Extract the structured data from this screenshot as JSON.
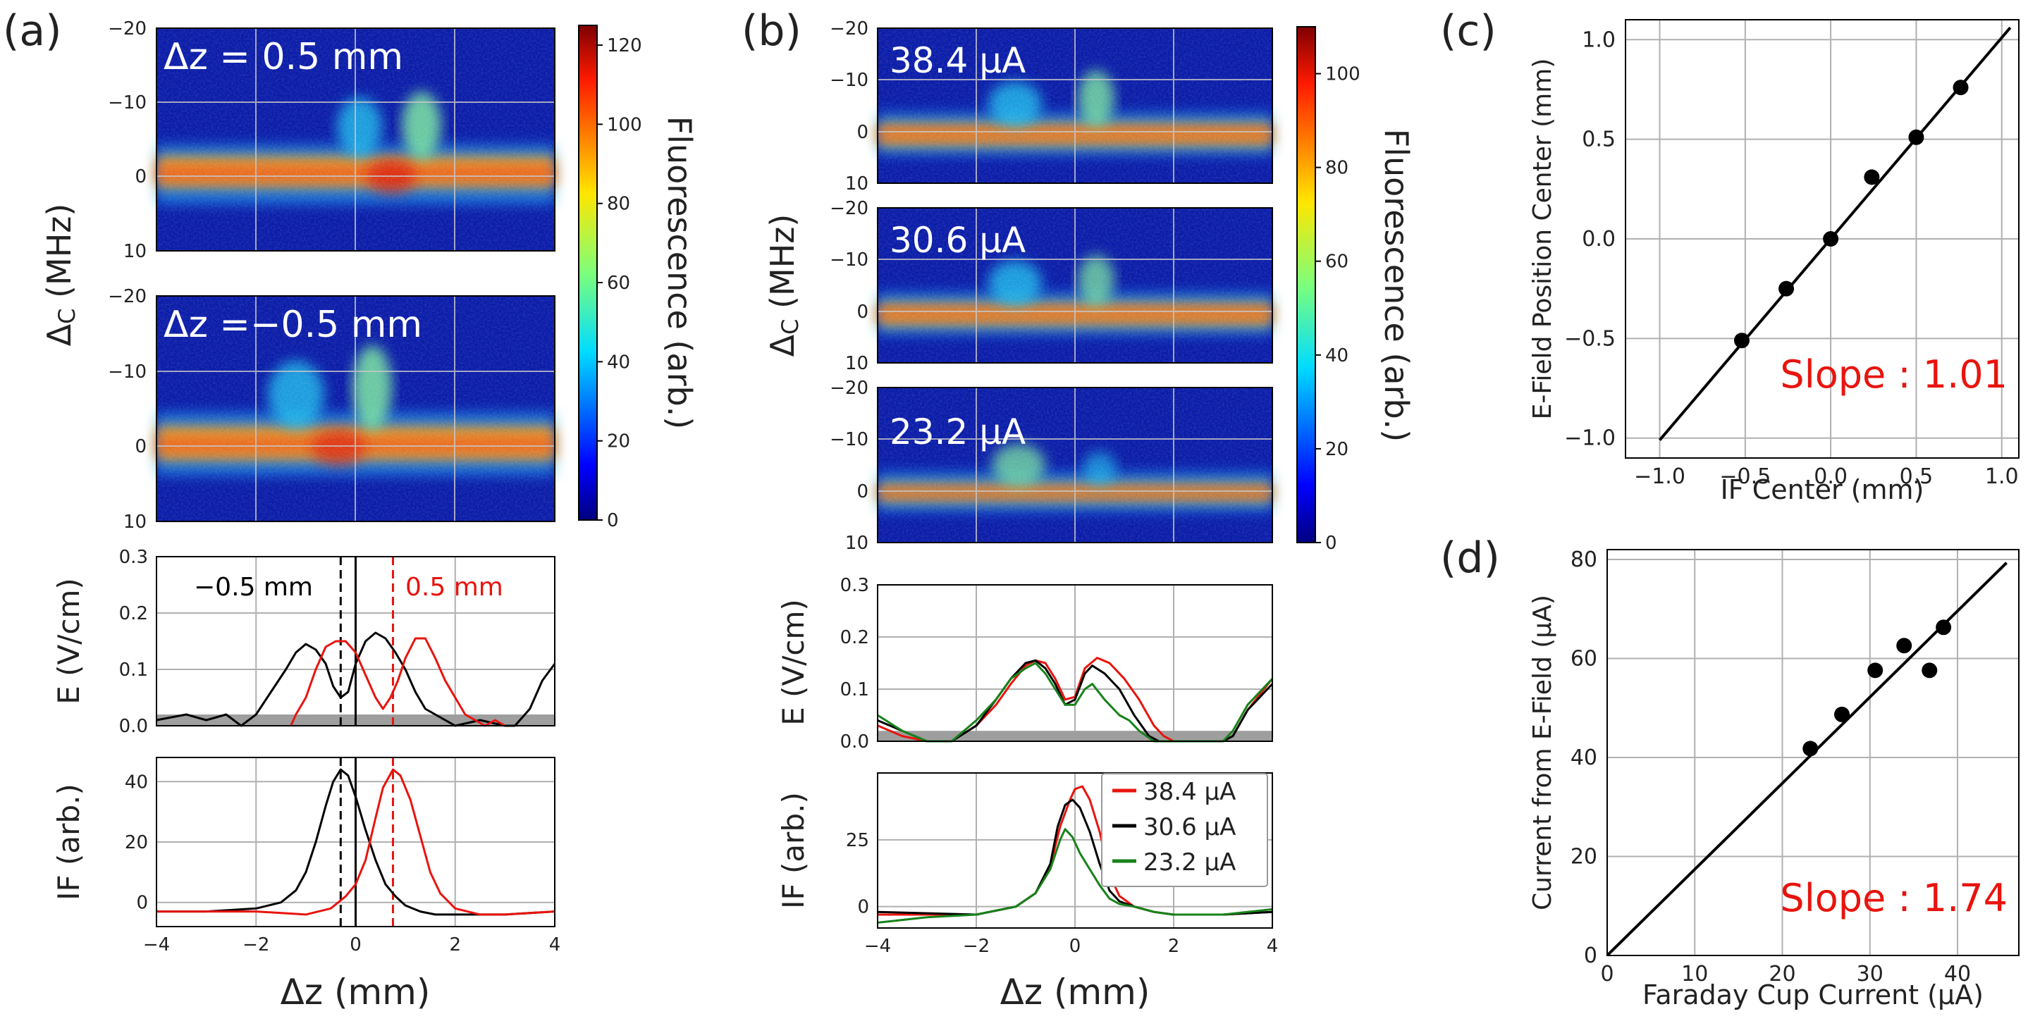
{
  "colors": {
    "red": "#e8140e",
    "black": "#000000",
    "green": "#17821a",
    "grid": "#b0b0b0",
    "shade": "#9e9e9e"
  },
  "panel_labels": [
    "(a)",
    "(b)",
    "(c)",
    "(d)"
  ],
  "chart_data": [
    {
      "id": "a-heatmaps",
      "type": "heatmap",
      "xlabel": "Δz (mm)",
      "ylabel": "Δ_C (MHz)",
      "xlim": [
        -4,
        4
      ],
      "ylim": [
        -20,
        10
      ],
      "y_ticks": [
        "−20",
        "−10",
        "0",
        "10"
      ],
      "maps": [
        {
          "label": "Δz = 0.5 mm",
          "dip_center": 0.8,
          "bump_centers": [
            0.3,
            1.4
          ]
        },
        {
          "label": "Δz =−0.5 mm",
          "dip_center": -0.3,
          "bump_centers": [
            -0.9,
            0.3
          ]
        }
      ],
      "colorbar": {
        "label": "Fluorescence (arb.)",
        "ticks": [
          "0",
          "20",
          "40",
          "60",
          "80",
          "100",
          "120"
        ],
        "range": [
          0,
          125
        ]
      }
    },
    {
      "id": "a-efield",
      "type": "line",
      "ylabel": "E (V/cm)",
      "xlim": [
        -4,
        4
      ],
      "ylim": [
        0,
        0.3
      ],
      "y_ticks": [
        "0.0",
        "0.1",
        "0.2",
        "0.3"
      ],
      "shade_below": 0.02,
      "annotations": [
        {
          "text": "−0.5 mm",
          "color": "black"
        },
        {
          "text": "0.5 mm",
          "color": "red"
        }
      ],
      "vlines": [
        {
          "x": -0.3,
          "color": "black",
          "style": "dashed"
        },
        {
          "x": 0.75,
          "color": "red",
          "style": "dashed"
        },
        {
          "x": 0.0,
          "color": "black",
          "style": "solid"
        }
      ],
      "series": [
        {
          "name": "−0.5 mm",
          "color": "black",
          "x": [
            -4.0,
            -3.4,
            -3.0,
            -2.6,
            -2.3,
            -2.0,
            -1.7,
            -1.4,
            -1.2,
            -1.0,
            -0.8,
            -0.6,
            -0.45,
            -0.3,
            -0.15,
            0.0,
            0.2,
            0.4,
            0.6,
            0.8,
            1.0,
            1.2,
            1.4,
            1.6,
            1.8,
            2.0,
            2.5,
            3.0,
            3.2,
            3.5,
            3.75,
            4.0
          ],
          "values": [
            0.01,
            0.02,
            0.01,
            0.02,
            0.0,
            0.02,
            0.06,
            0.1,
            0.13,
            0.145,
            0.135,
            0.11,
            0.07,
            0.05,
            0.06,
            0.11,
            0.15,
            0.165,
            0.155,
            0.13,
            0.1,
            0.06,
            0.03,
            0.02,
            0.01,
            0.0,
            0.01,
            0.0,
            0.0,
            0.03,
            0.08,
            0.11
          ]
        },
        {
          "name": "0.5 mm",
          "color": "red",
          "x": [
            -1.3,
            -1.2,
            -1.0,
            -0.8,
            -0.6,
            -0.4,
            -0.2,
            0.0,
            0.2,
            0.4,
            0.55,
            0.7,
            0.85,
            1.0,
            1.2,
            1.4,
            1.6,
            1.8,
            2.0,
            2.2,
            2.4,
            2.6,
            2.8,
            3.0
          ],
          "values": [
            0.0,
            0.02,
            0.05,
            0.1,
            0.14,
            0.15,
            0.15,
            0.13,
            0.09,
            0.05,
            0.03,
            0.05,
            0.08,
            0.12,
            0.155,
            0.155,
            0.12,
            0.08,
            0.05,
            0.02,
            0.01,
            0.0,
            0.01,
            0.0
          ]
        }
      ]
    },
    {
      "id": "a-if",
      "type": "line",
      "ylabel": "IF (arb.)",
      "xlabel": "Δz (mm)",
      "xlim": [
        -4,
        4
      ],
      "ylim": [
        -8,
        48
      ],
      "y_ticks": [
        "0",
        "20",
        "40"
      ],
      "x_ticks": [
        "−4",
        "−2",
        "0",
        "2",
        "4"
      ],
      "vlines": [
        {
          "x": -0.3,
          "color": "black",
          "style": "dashed"
        },
        {
          "x": 0.75,
          "color": "red",
          "style": "dashed"
        },
        {
          "x": 0.0,
          "color": "black",
          "style": "solid"
        }
      ],
      "series": [
        {
          "name": "−0.5 mm",
          "color": "black",
          "x": [
            -4.0,
            -3.0,
            -2.0,
            -1.5,
            -1.2,
            -1.0,
            -0.8,
            -0.6,
            -0.45,
            -0.3,
            -0.15,
            0.0,
            0.2,
            0.4,
            0.6,
            0.8,
            1.0,
            1.3,
            1.6,
            2.0,
            3.0,
            4.0
          ],
          "values": [
            -3,
            -3,
            -2,
            0,
            4,
            10,
            20,
            32,
            40,
            44,
            42,
            35,
            24,
            14,
            6,
            2,
            -1,
            -3,
            -4,
            -4,
            -4,
            -3
          ]
        },
        {
          "name": "0.5 mm",
          "color": "red",
          "x": [
            -4.0,
            -2.0,
            -1.0,
            -0.5,
            -0.2,
            0.0,
            0.2,
            0.4,
            0.55,
            0.75,
            0.9,
            1.1,
            1.3,
            1.5,
            1.7,
            2.0,
            2.5,
            3.0,
            4.0
          ],
          "values": [
            -3,
            -3,
            -4,
            -2,
            2,
            6,
            14,
            28,
            38,
            44,
            42,
            34,
            22,
            10,
            3,
            -2,
            -4,
            -4,
            -3
          ]
        }
      ]
    },
    {
      "id": "b-heatmaps",
      "type": "heatmap",
      "xlabel": "Δz (mm)",
      "ylabel": "Δ_C (MHz)",
      "xlim": [
        -4,
        4
      ],
      "ylim": [
        -20,
        10
      ],
      "y_ticks": [
        "−20",
        "−10",
        "0",
        "10"
      ],
      "maps": [
        {
          "label": "38.4 μA",
          "dip_center": 0.0,
          "bump_centers": [
            -0.9,
            0.3
          ]
        },
        {
          "label": "30.6 μA",
          "dip_center": 0.0,
          "bump_centers": [
            -0.9,
            0.3
          ]
        },
        {
          "label": "23.2 μA",
          "dip_center": 0.0,
          "bump_centers": [
            -0.9,
            0.3
          ]
        }
      ],
      "colorbar": {
        "label": "Fluorescence (arb.)",
        "ticks": [
          "0",
          "20",
          "40",
          "60",
          "80",
          "100"
        ],
        "range": [
          0,
          110
        ]
      }
    },
    {
      "id": "b-efield",
      "type": "line",
      "ylabel": "E (V/cm)",
      "xlim": [
        -4,
        4
      ],
      "ylim": [
        0,
        0.3
      ],
      "y_ticks": [
        "0.0",
        "0.1",
        "0.2",
        "0.3"
      ],
      "shade_below": 0.02,
      "series": [
        {
          "name": "38.4 μA",
          "color": "red",
          "x": [
            -4.0,
            -3.5,
            -3.0,
            -2.5,
            -2.0,
            -1.6,
            -1.3,
            -1.0,
            -0.8,
            -0.6,
            -0.4,
            -0.2,
            0.0,
            0.2,
            0.45,
            0.7,
            1.0,
            1.3,
            1.6,
            1.8,
            2.0,
            2.5,
            3.0,
            3.2,
            3.5,
            4.0
          ],
          "values": [
            0.03,
            0.01,
            0.0,
            0.0,
            0.03,
            0.07,
            0.11,
            0.145,
            0.155,
            0.15,
            0.12,
            0.08,
            0.085,
            0.14,
            0.16,
            0.15,
            0.12,
            0.08,
            0.03,
            0.01,
            0.0,
            0.0,
            0.0,
            0.01,
            0.06,
            0.12
          ]
        },
        {
          "name": "30.6 μA",
          "color": "black",
          "x": [
            -4.0,
            -3.5,
            -3.0,
            -2.5,
            -2.0,
            -1.6,
            -1.3,
            -1.0,
            -0.8,
            -0.6,
            -0.4,
            -0.2,
            0.0,
            0.2,
            0.35,
            0.6,
            0.9,
            1.2,
            1.5,
            1.7,
            2.0,
            2.5,
            3.0,
            3.2,
            3.5,
            4.0
          ],
          "values": [
            0.04,
            0.02,
            0.0,
            0.0,
            0.03,
            0.08,
            0.12,
            0.15,
            0.155,
            0.14,
            0.11,
            0.07,
            0.08,
            0.13,
            0.145,
            0.13,
            0.1,
            0.05,
            0.01,
            0.0,
            0.0,
            0.0,
            0.0,
            0.01,
            0.06,
            0.11
          ]
        },
        {
          "name": "23.2 μA",
          "color": "green",
          "x": [
            -4.0,
            -3.5,
            -3.0,
            -2.5,
            -2.0,
            -1.6,
            -1.3,
            -1.0,
            -0.8,
            -0.6,
            -0.4,
            -0.2,
            0.0,
            0.2,
            0.35,
            0.6,
            0.9,
            1.1,
            1.3,
            1.6,
            2.0,
            2.5,
            3.0,
            3.2,
            3.5,
            4.0
          ],
          "values": [
            0.05,
            0.02,
            0.0,
            0.0,
            0.04,
            0.08,
            0.12,
            0.14,
            0.15,
            0.13,
            0.1,
            0.07,
            0.07,
            0.1,
            0.11,
            0.08,
            0.05,
            0.04,
            0.02,
            0.0,
            0.0,
            0.0,
            0.0,
            0.02,
            0.07,
            0.12
          ]
        }
      ]
    },
    {
      "id": "b-if",
      "type": "line",
      "ylabel": "IF (arb.)",
      "xlabel": "Δz (mm)",
      "xlim": [
        -4,
        4
      ],
      "ylim": [
        -8,
        50
      ],
      "y_ticks": [
        "0",
        "25"
      ],
      "x_ticks": [
        "−4",
        "−2",
        "0",
        "2",
        "4"
      ],
      "legend": "top-right",
      "series": [
        {
          "name": "38.4 μA",
          "color": "red",
          "x": [
            -4.0,
            -2.0,
            -1.2,
            -0.8,
            -0.5,
            -0.3,
            -0.1,
            0.0,
            0.15,
            0.3,
            0.5,
            0.7,
            0.9,
            1.2,
            1.6,
            2.0,
            3.0,
            4.0
          ],
          "values": [
            -3,
            -3,
            0,
            5,
            15,
            30,
            40,
            44,
            45,
            40,
            28,
            12,
            4,
            0,
            -2,
            -3,
            -3,
            -2
          ]
        },
        {
          "name": "30.6 μA",
          "color": "black",
          "x": [
            -4.0,
            -2.0,
            -1.2,
            -0.8,
            -0.5,
            -0.35,
            -0.2,
            -0.05,
            0.1,
            0.3,
            0.5,
            0.7,
            0.9,
            1.2,
            1.6,
            2.0,
            3.0,
            4.0
          ],
          "values": [
            -2,
            -3,
            0,
            5,
            16,
            30,
            38,
            40,
            37,
            28,
            16,
            6,
            2,
            0,
            -2,
            -3,
            -3,
            -2
          ]
        },
        {
          "name": "23.2 μA",
          "color": "green",
          "x": [
            -4.0,
            -3.0,
            -2.0,
            -1.2,
            -0.8,
            -0.5,
            -0.3,
            -0.2,
            -0.05,
            0.1,
            0.3,
            0.5,
            0.7,
            0.9,
            1.2,
            1.6,
            2.0,
            3.0,
            4.0
          ],
          "values": [
            -6,
            -4,
            -3,
            0,
            5,
            14,
            25,
            29,
            26,
            20,
            14,
            8,
            3,
            1,
            0,
            -2,
            -3,
            -3,
            -1
          ]
        }
      ]
    },
    {
      "id": "c",
      "type": "scatter",
      "xlabel": "IF Center (mm)",
      "ylabel": "E-Field Position Center (mm)",
      "xlim": [
        -1.2,
        1.1
      ],
      "ylim": [
        -1.1,
        1.1
      ],
      "x_ticks": [
        "−1.0",
        "−0.5",
        "0.0",
        "0.5",
        "1.0"
      ],
      "y_ticks": [
        "−1.0",
        "−0.5",
        "0.0",
        "0.5",
        "1.0"
      ],
      "x": [
        -0.52,
        -0.26,
        0.0,
        0.24,
        0.5,
        0.76
      ],
      "values": [
        -0.51,
        -0.25,
        0.0,
        0.31,
        0.51,
        0.76
      ],
      "fit_line": {
        "slope": 1.01,
        "intercept": 0.0,
        "x_range": [
          -1.0,
          1.05
        ]
      },
      "annotation": "Slope : 1.01"
    },
    {
      "id": "d",
      "type": "scatter",
      "xlabel": "Faraday Cup Current (μA)",
      "ylabel": "Current from E-Field (μA)",
      "xlim": [
        0,
        47
      ],
      "ylim": [
        0,
        82
      ],
      "x_ticks": [
        "0",
        "10",
        "20",
        "30",
        "40"
      ],
      "y_ticks": [
        "0",
        "20",
        "40",
        "60",
        "80"
      ],
      "x": [
        23.2,
        26.8,
        30.6,
        33.9,
        36.8,
        38.4
      ],
      "values": [
        41.8,
        48.7,
        57.6,
        62.6,
        57.6,
        66.3
      ],
      "fit_line": {
        "slope": 1.74,
        "intercept": 0.0,
        "x_range": [
          0,
          45.6
        ]
      },
      "annotation": "Slope : 1.74"
    }
  ]
}
